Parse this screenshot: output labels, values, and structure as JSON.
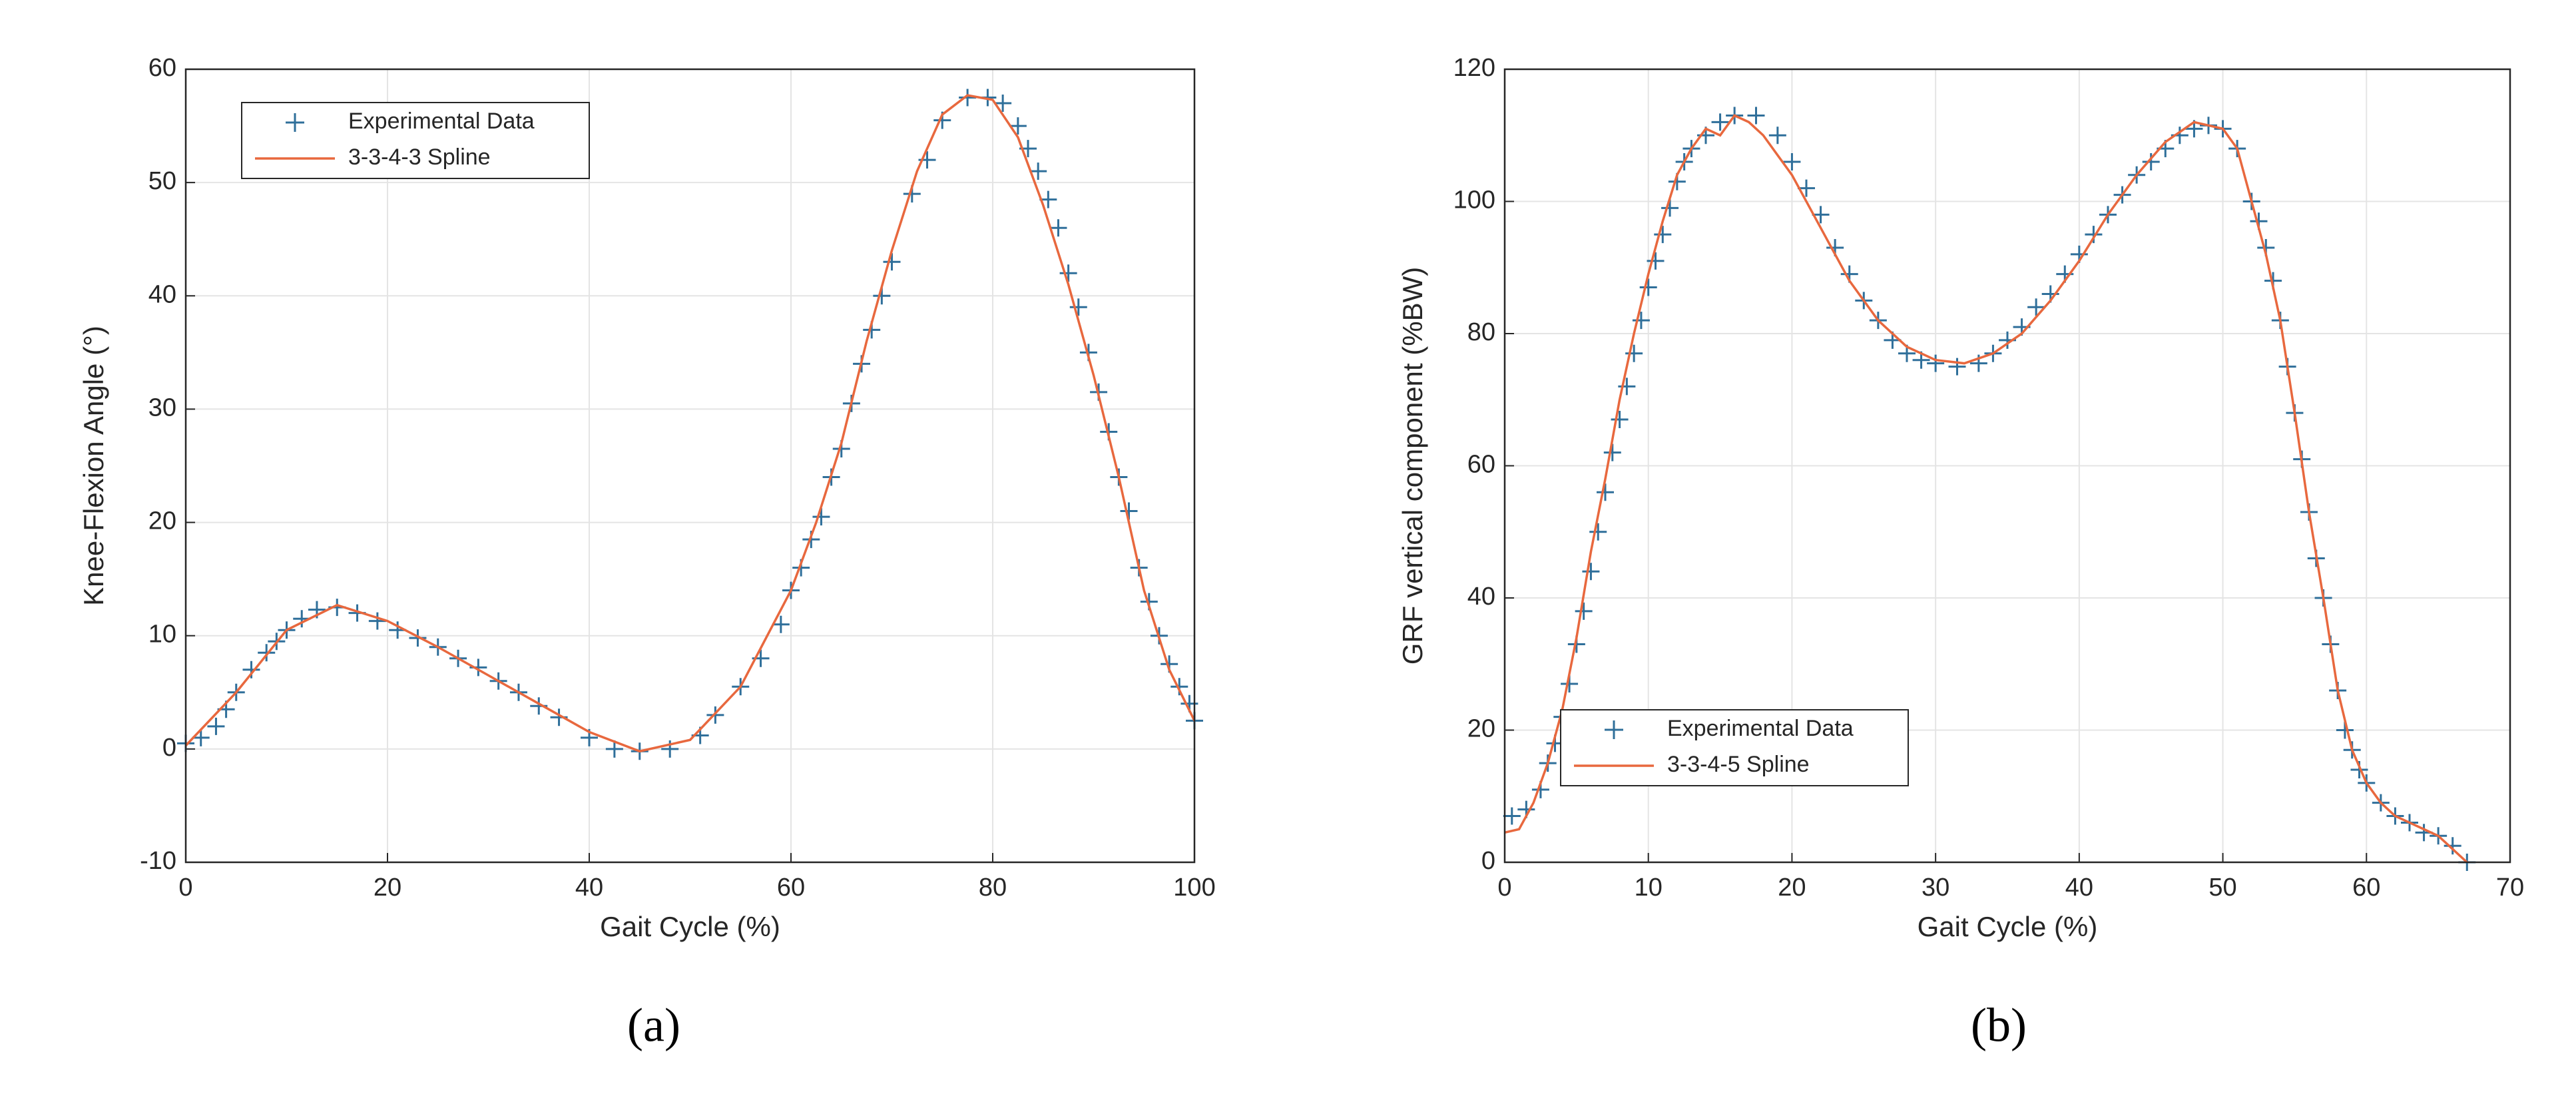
{
  "chart_data": [
    {
      "type": "line",
      "caption": "(a)",
      "x_label": "Gait Cycle (%)",
      "y_label": "Knee-Flexion Angle (°)",
      "xlim": [
        0,
        100
      ],
      "xticks": [
        0,
        20,
        40,
        60,
        80,
        100
      ],
      "ylim": [
        -10,
        60
      ],
      "yticks": [
        -10,
        0,
        10,
        20,
        30,
        40,
        50,
        60
      ],
      "grid": true,
      "legend": "upper left",
      "series": [
        {
          "name": "Experimental Data",
          "color": "#2f6f9a",
          "style": "markers",
          "x": [
            0,
            1.5,
            3,
            4,
            5,
            6.5,
            8,
            9,
            10,
            11.5,
            13,
            15,
            17,
            19,
            21,
            23,
            25,
            27,
            29,
            31,
            33,
            35,
            37,
            40,
            42.5,
            45,
            48,
            51,
            52.5,
            55,
            57,
            59,
            60,
            61,
            62,
            63,
            64,
            65,
            66,
            67,
            68,
            69,
            70,
            72,
            73.5,
            75,
            77.5,
            79.5,
            81,
            82.5,
            83.5,
            84.5,
            85.5,
            86.5,
            87.5,
            88.5,
            89.5,
            90.5,
            91.5,
            92.5,
            93.5,
            94.5,
            95.5,
            96.5,
            97.5,
            98.5,
            99.5,
            100
          ],
          "values": [
            0.5,
            1,
            2,
            3.5,
            5,
            7,
            8.5,
            9.5,
            10.5,
            11.5,
            12.3,
            12.5,
            12,
            11.3,
            10.5,
            9.8,
            9,
            8,
            7.2,
            6,
            5,
            3.8,
            2.8,
            1,
            0,
            -0.2,
            0,
            1.2,
            3,
            5.5,
            8,
            11,
            14,
            16,
            18.5,
            20.5,
            24,
            26.5,
            30.5,
            34,
            37,
            40,
            43,
            49,
            52,
            55.5,
            57.5,
            57.5,
            57,
            55,
            53,
            51,
            48.5,
            46,
            42,
            39,
            35,
            31.5,
            28,
            24,
            21,
            16,
            13,
            10,
            7.5,
            5.5,
            4,
            2.5
          ]
        },
        {
          "name": "3-3-4-3 Spline",
          "color": "#e8683e",
          "style": "line",
          "x": [
            0,
            5,
            10,
            15,
            20,
            25,
            30,
            35,
            40,
            45,
            50,
            55,
            60,
            62.5,
            65,
            67.5,
            70,
            72.5,
            75,
            77.5,
            80,
            82.5,
            85,
            87.5,
            90,
            92.5,
            95,
            97.5,
            100
          ],
          "values": [
            0.3,
            5,
            10.5,
            12.7,
            11.3,
            9,
            6.5,
            4,
            1.5,
            -0.2,
            0.8,
            5.5,
            14,
            20,
            27,
            36,
            44,
            51,
            56,
            57.7,
            57.3,
            54,
            48,
            41,
            33,
            24,
            14,
            7,
            2.5
          ]
        }
      ]
    },
    {
      "type": "line",
      "caption": "(b)",
      "x_label": "Gait Cycle (%)",
      "y_label": "GRF vertical component (%BW)",
      "xlim": [
        0,
        70
      ],
      "xticks": [
        0,
        10,
        20,
        30,
        40,
        50,
        60,
        70
      ],
      "ylim": [
        0,
        120
      ],
      "yticks": [
        0,
        20,
        40,
        60,
        80,
        100,
        120
      ],
      "grid": true,
      "legend": "lower left",
      "series": [
        {
          "name": "Experimental Data",
          "color": "#2f6f9a",
          "style": "markers",
          "x": [
            0.5,
            1.5,
            2.5,
            3,
            3.5,
            4,
            4.5,
            5,
            5.5,
            6,
            6.5,
            7,
            7.5,
            8,
            8.5,
            9,
            9.5,
            10,
            10.5,
            11,
            11.5,
            12,
            12.5,
            13,
            14,
            15,
            16,
            17.5,
            19,
            20,
            21,
            22,
            23,
            24,
            25,
            26,
            27,
            28,
            29,
            30,
            31.5,
            33,
            34,
            35,
            36,
            37,
            38,
            39,
            40,
            41,
            42,
            43,
            44,
            45,
            46,
            47,
            48,
            49,
            50,
            51,
            52,
            52.5,
            53,
            53.5,
            54,
            54.5,
            55,
            55.5,
            56,
            56.5,
            57,
            57.5,
            58,
            58.5,
            59,
            59.5,
            60,
            61,
            62,
            63,
            64,
            65,
            66,
            67
          ],
          "values": [
            7,
            8,
            11,
            15,
            18,
            22,
            27,
            33,
            38,
            44,
            50,
            56,
            62,
            67,
            72,
            77,
            82,
            87,
            91,
            95,
            99,
            103,
            106,
            108,
            110,
            112,
            113,
            113,
            110,
            106,
            102,
            98,
            93,
            89,
            85,
            82,
            79,
            77,
            76,
            75.5,
            75,
            75.5,
            77,
            79,
            81,
            84,
            86,
            89,
            92,
            95,
            98,
            101,
            104,
            106,
            108,
            110,
            111,
            111.5,
            111,
            108,
            100,
            97,
            93,
            88,
            82,
            75,
            68,
            61,
            53,
            46,
            40,
            33,
            26,
            20,
            17,
            14,
            12,
            9,
            7,
            6,
            4.5,
            4,
            2.5,
            0
          ]
        },
        {
          "name": "3-3-4-5 Spline",
          "color": "#e8683e",
          "style": "line",
          "x": [
            0,
            1,
            2,
            3,
            4,
            5,
            6,
            7,
            8,
            9,
            10,
            11,
            12,
            13,
            14,
            15,
            16,
            17,
            18,
            20,
            22,
            24,
            26,
            28,
            30,
            32,
            34,
            36,
            38,
            40,
            42,
            44,
            46,
            48,
            50,
            51,
            52,
            53,
            54,
            55,
            56,
            57,
            58,
            59,
            60,
            61,
            62,
            63,
            64,
            65,
            66,
            67
          ],
          "values": [
            4.5,
            5,
            9,
            15,
            23,
            34,
            47,
            58,
            70,
            80,
            89,
            97,
            104,
            108,
            111,
            110,
            113,
            112,
            110,
            104,
            96,
            88,
            82,
            78,
            76,
            75.5,
            77,
            80,
            85,
            91,
            98,
            104,
            109,
            112,
            111,
            108,
            100,
            92,
            82,
            68,
            53,
            40,
            26,
            17,
            12,
            9,
            7,
            6,
            5,
            4,
            2,
            0
          ]
        }
      ]
    }
  ]
}
